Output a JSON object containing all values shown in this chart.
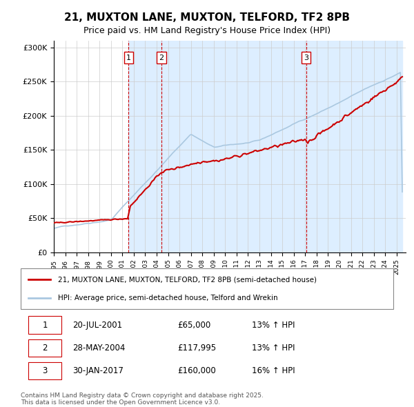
{
  "title": "21, MUXTON LANE, MUXTON, TELFORD, TF2 8PB",
  "subtitle": "Price paid vs. HM Land Registry's House Price Index (HPI)",
  "ylabel_ticks": [
    "£0",
    "£50K",
    "£100K",
    "£150K",
    "£200K",
    "£250K",
    "£300K"
  ],
  "ytick_values": [
    0,
    50000,
    100000,
    150000,
    200000,
    250000,
    300000
  ],
  "ylim": [
    0,
    310000
  ],
  "legend_line1": "21, MUXTON LANE, MUXTON, TELFORD, TF2 8PB (semi-detached house)",
  "legend_line2": "HPI: Average price, semi-detached house, Telford and Wrekin",
  "price_color": "#cc0000",
  "hpi_color": "#aac8e0",
  "shaded_color": "#ddeeff",
  "transaction1_date": 2001.55,
  "transaction1_price": 65000,
  "transaction1_label": "1",
  "transaction2_date": 2004.41,
  "transaction2_price": 117995,
  "transaction2_label": "2",
  "transaction3_date": 2017.08,
  "transaction3_price": 160000,
  "transaction3_label": "3",
  "footer1": "Contains HM Land Registry data © Crown copyright and database right 2025.",
  "footer2": "This data is licensed under the Open Government Licence v3.0.",
  "table_rows": [
    [
      "1",
      "20-JUL-2001",
      "£65,000",
      "13% ↑ HPI"
    ],
    [
      "2",
      "28-MAY-2004",
      "£117,995",
      "13% ↑ HPI"
    ],
    [
      "3",
      "30-JAN-2017",
      "£160,000",
      "16% ↑ HPI"
    ]
  ]
}
